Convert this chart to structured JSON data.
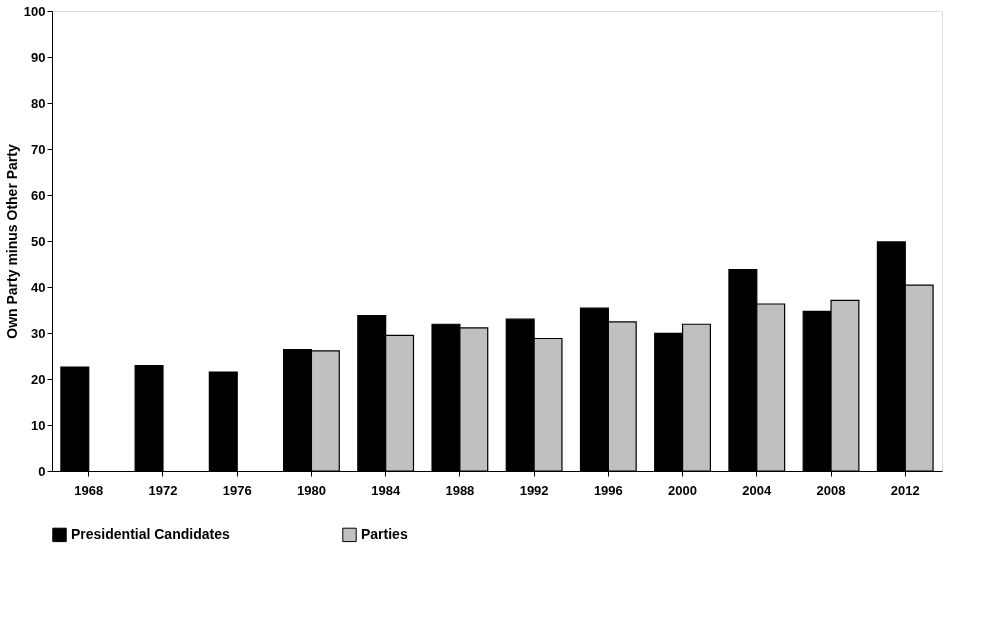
{
  "chart_data": {
    "type": "bar",
    "ylabel": "Own Party minus Other Party",
    "categories": [
      "1968",
      "1972",
      "1976",
      "1980",
      "1984",
      "1988",
      "1992",
      "1996",
      "2000",
      "2004",
      "2008",
      "2012"
    ],
    "series": [
      {
        "name": "Presidential Candidates",
        "color": "#000000",
        "values": [
          22.6,
          22.9,
          21.5,
          26.4,
          33.8,
          31.9,
          33.0,
          35.4,
          29.9,
          43.8,
          34.7,
          49.8
        ]
      },
      {
        "name": "Parties",
        "color": "#c0c0c0",
        "values": [
          null,
          null,
          null,
          26.1,
          29.5,
          31.1,
          28.8,
          32.4,
          31.9,
          36.3,
          37.1,
          40.4
        ]
      }
    ],
    "ylim": [
      0,
      100
    ],
    "yticks": [
      0,
      10,
      20,
      30,
      40,
      50,
      60,
      70,
      80,
      90,
      100
    ],
    "grid": false,
    "legend": "bottom"
  }
}
